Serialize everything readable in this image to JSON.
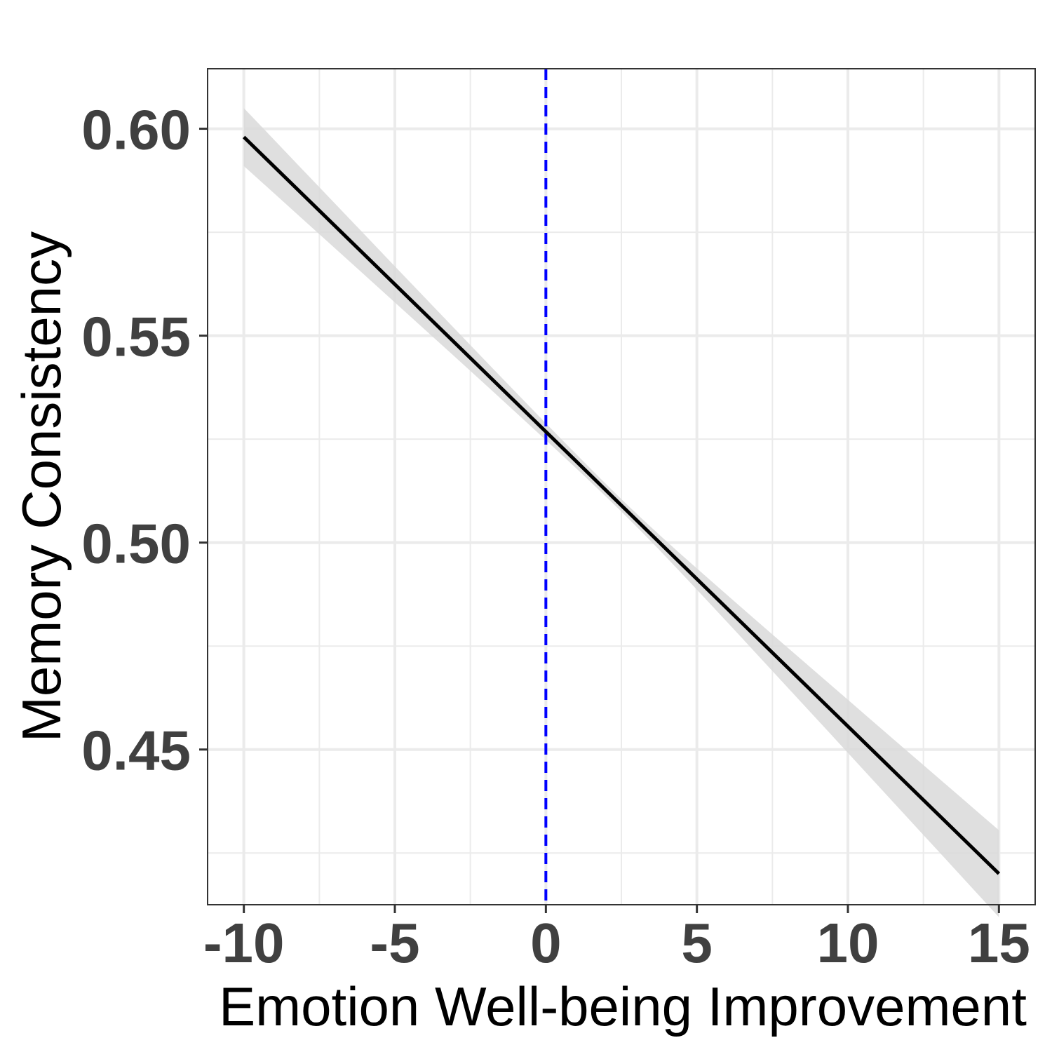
{
  "chart_data": {
    "type": "line",
    "xlabel": "Emotion Well-being Improvement",
    "ylabel": "Memory Consistency",
    "xlim": [
      -11.2,
      16.2
    ],
    "ylim": [
      0.4125,
      0.6145
    ],
    "x_ticks": [
      -10,
      -5,
      0,
      5,
      10,
      15
    ],
    "x_tick_labels": [
      "-10",
      "-5",
      "0",
      "5",
      "10",
      "15"
    ],
    "y_ticks": [
      0.45,
      0.5,
      0.55,
      0.6
    ],
    "y_tick_labels": [
      "0.45",
      "0.50",
      "0.55",
      "0.60"
    ],
    "grid": true,
    "series": [
      {
        "x": [
          -10,
          15
        ],
        "y": [
          0.598,
          0.42
        ],
        "ci_lower": [
          0.591,
          0.41
        ],
        "ci_upper": [
          0.605,
          0.431
        ],
        "color": "#000000",
        "ci_color": "#d9d9d9"
      }
    ],
    "reference_line": {
      "axis": "x",
      "value": 0,
      "color": "#0000ff",
      "style": "dashed"
    }
  }
}
